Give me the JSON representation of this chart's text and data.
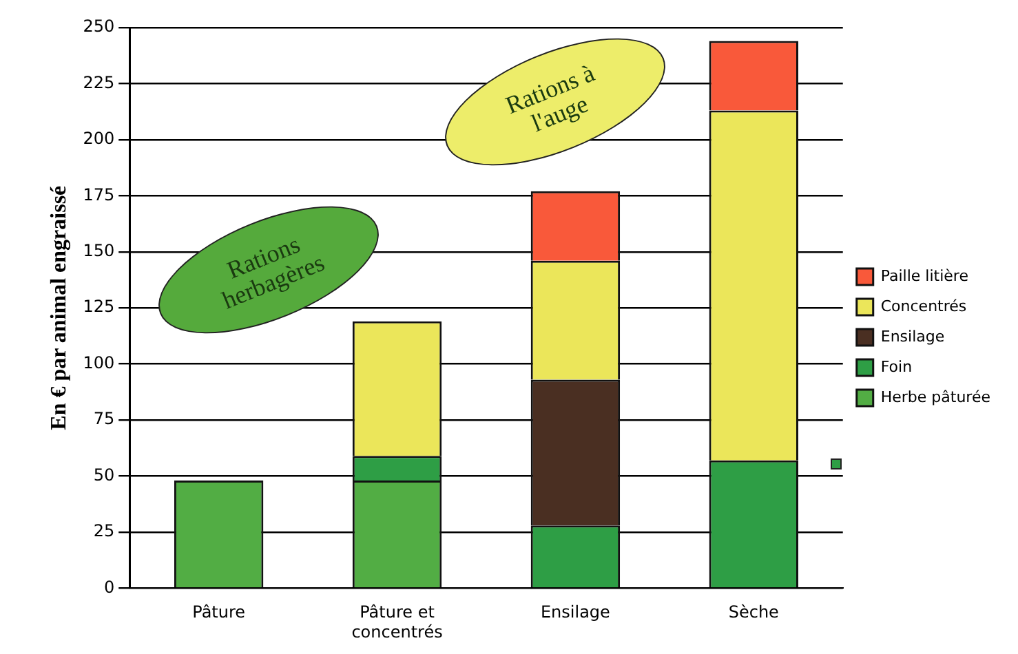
{
  "chart_data": {
    "type": "bar",
    "stacked": true,
    "ylabel": "En € par animal engraissé",
    "categories": [
      "Pâture",
      "Pâture et concentrés",
      "Ensilage",
      "Sèche"
    ],
    "series": [
      {
        "name": "Herbe pâturée",
        "color": "#52ad44",
        "values": [
          48,
          48,
          0,
          0
        ]
      },
      {
        "name": "Foin",
        "color": "#2e9e45",
        "values": [
          0,
          11,
          28,
          57
        ]
      },
      {
        "name": "Ensilage",
        "color": "#4a2f22",
        "values": [
          0,
          0,
          65,
          0
        ]
      },
      {
        "name": "Concentrés",
        "color": "#ebe65a",
        "values": [
          0,
          60,
          53,
          156
        ]
      },
      {
        "name": "Paille litière",
        "color": "#f9593a",
        "values": [
          0,
          0,
          31,
          31
        ]
      }
    ],
    "ylim": [
      0,
      250
    ],
    "yticks": [
      0,
      25,
      50,
      75,
      100,
      125,
      150,
      175,
      200,
      225,
      250
    ],
    "grid": "y",
    "legend": "right",
    "annotations": [
      "Rations herbagères",
      "Rations à l'auge"
    ]
  }
}
